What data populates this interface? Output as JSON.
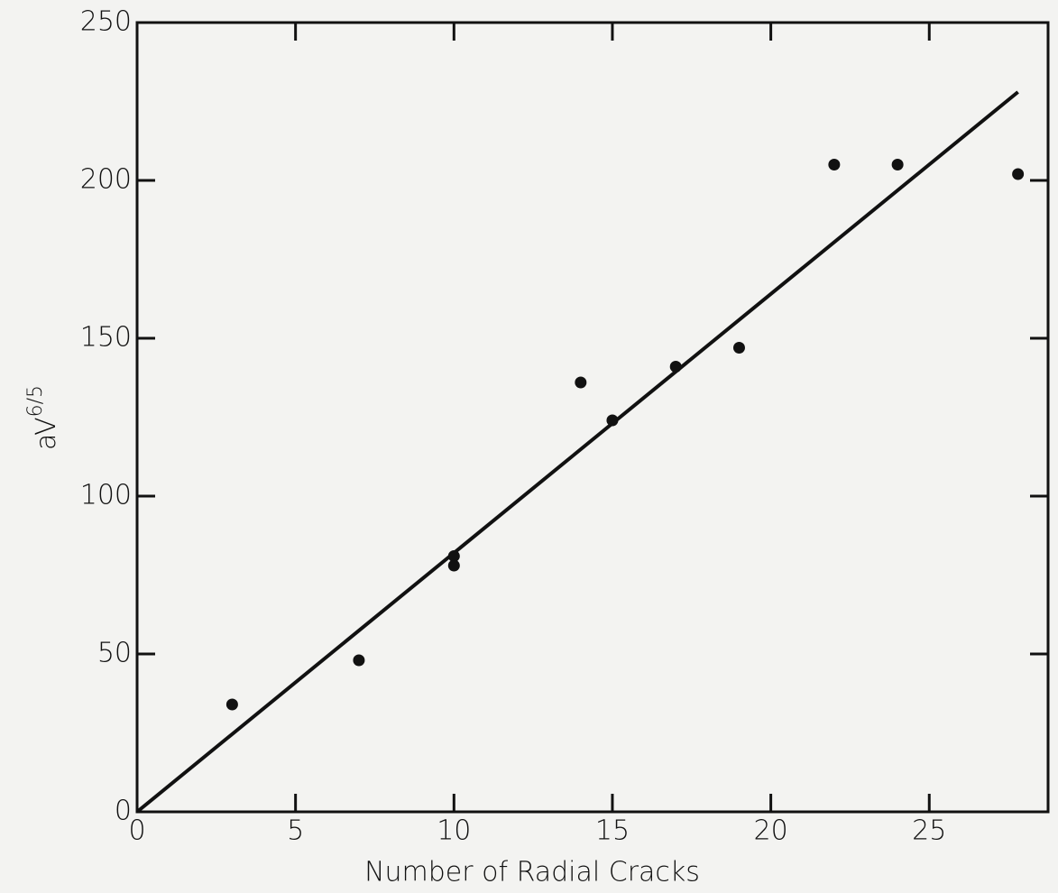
{
  "chart_data": {
    "type": "scatter",
    "xlabel": "Number of Radial Cracks",
    "ylabel": {
      "text": "aV",
      "superscript": "6/5"
    },
    "xlim": [
      0,
      28.75
    ],
    "ylim": [
      0,
      250
    ],
    "xticks": [
      0,
      5,
      10,
      15,
      20,
      25
    ],
    "yticks": [
      0,
      50,
      100,
      150,
      200,
      250
    ],
    "color": "#111111",
    "points": {
      "x": [
        3,
        7,
        10,
        10,
        14,
        15,
        17,
        19,
        22,
        24,
        27.8
      ],
      "values": [
        34,
        48,
        81,
        78,
        136,
        124,
        141,
        147,
        205,
        205,
        202
      ]
    },
    "fit_line": {
      "x": [
        0,
        27.8
      ],
      "values": [
        0,
        228
      ]
    }
  }
}
